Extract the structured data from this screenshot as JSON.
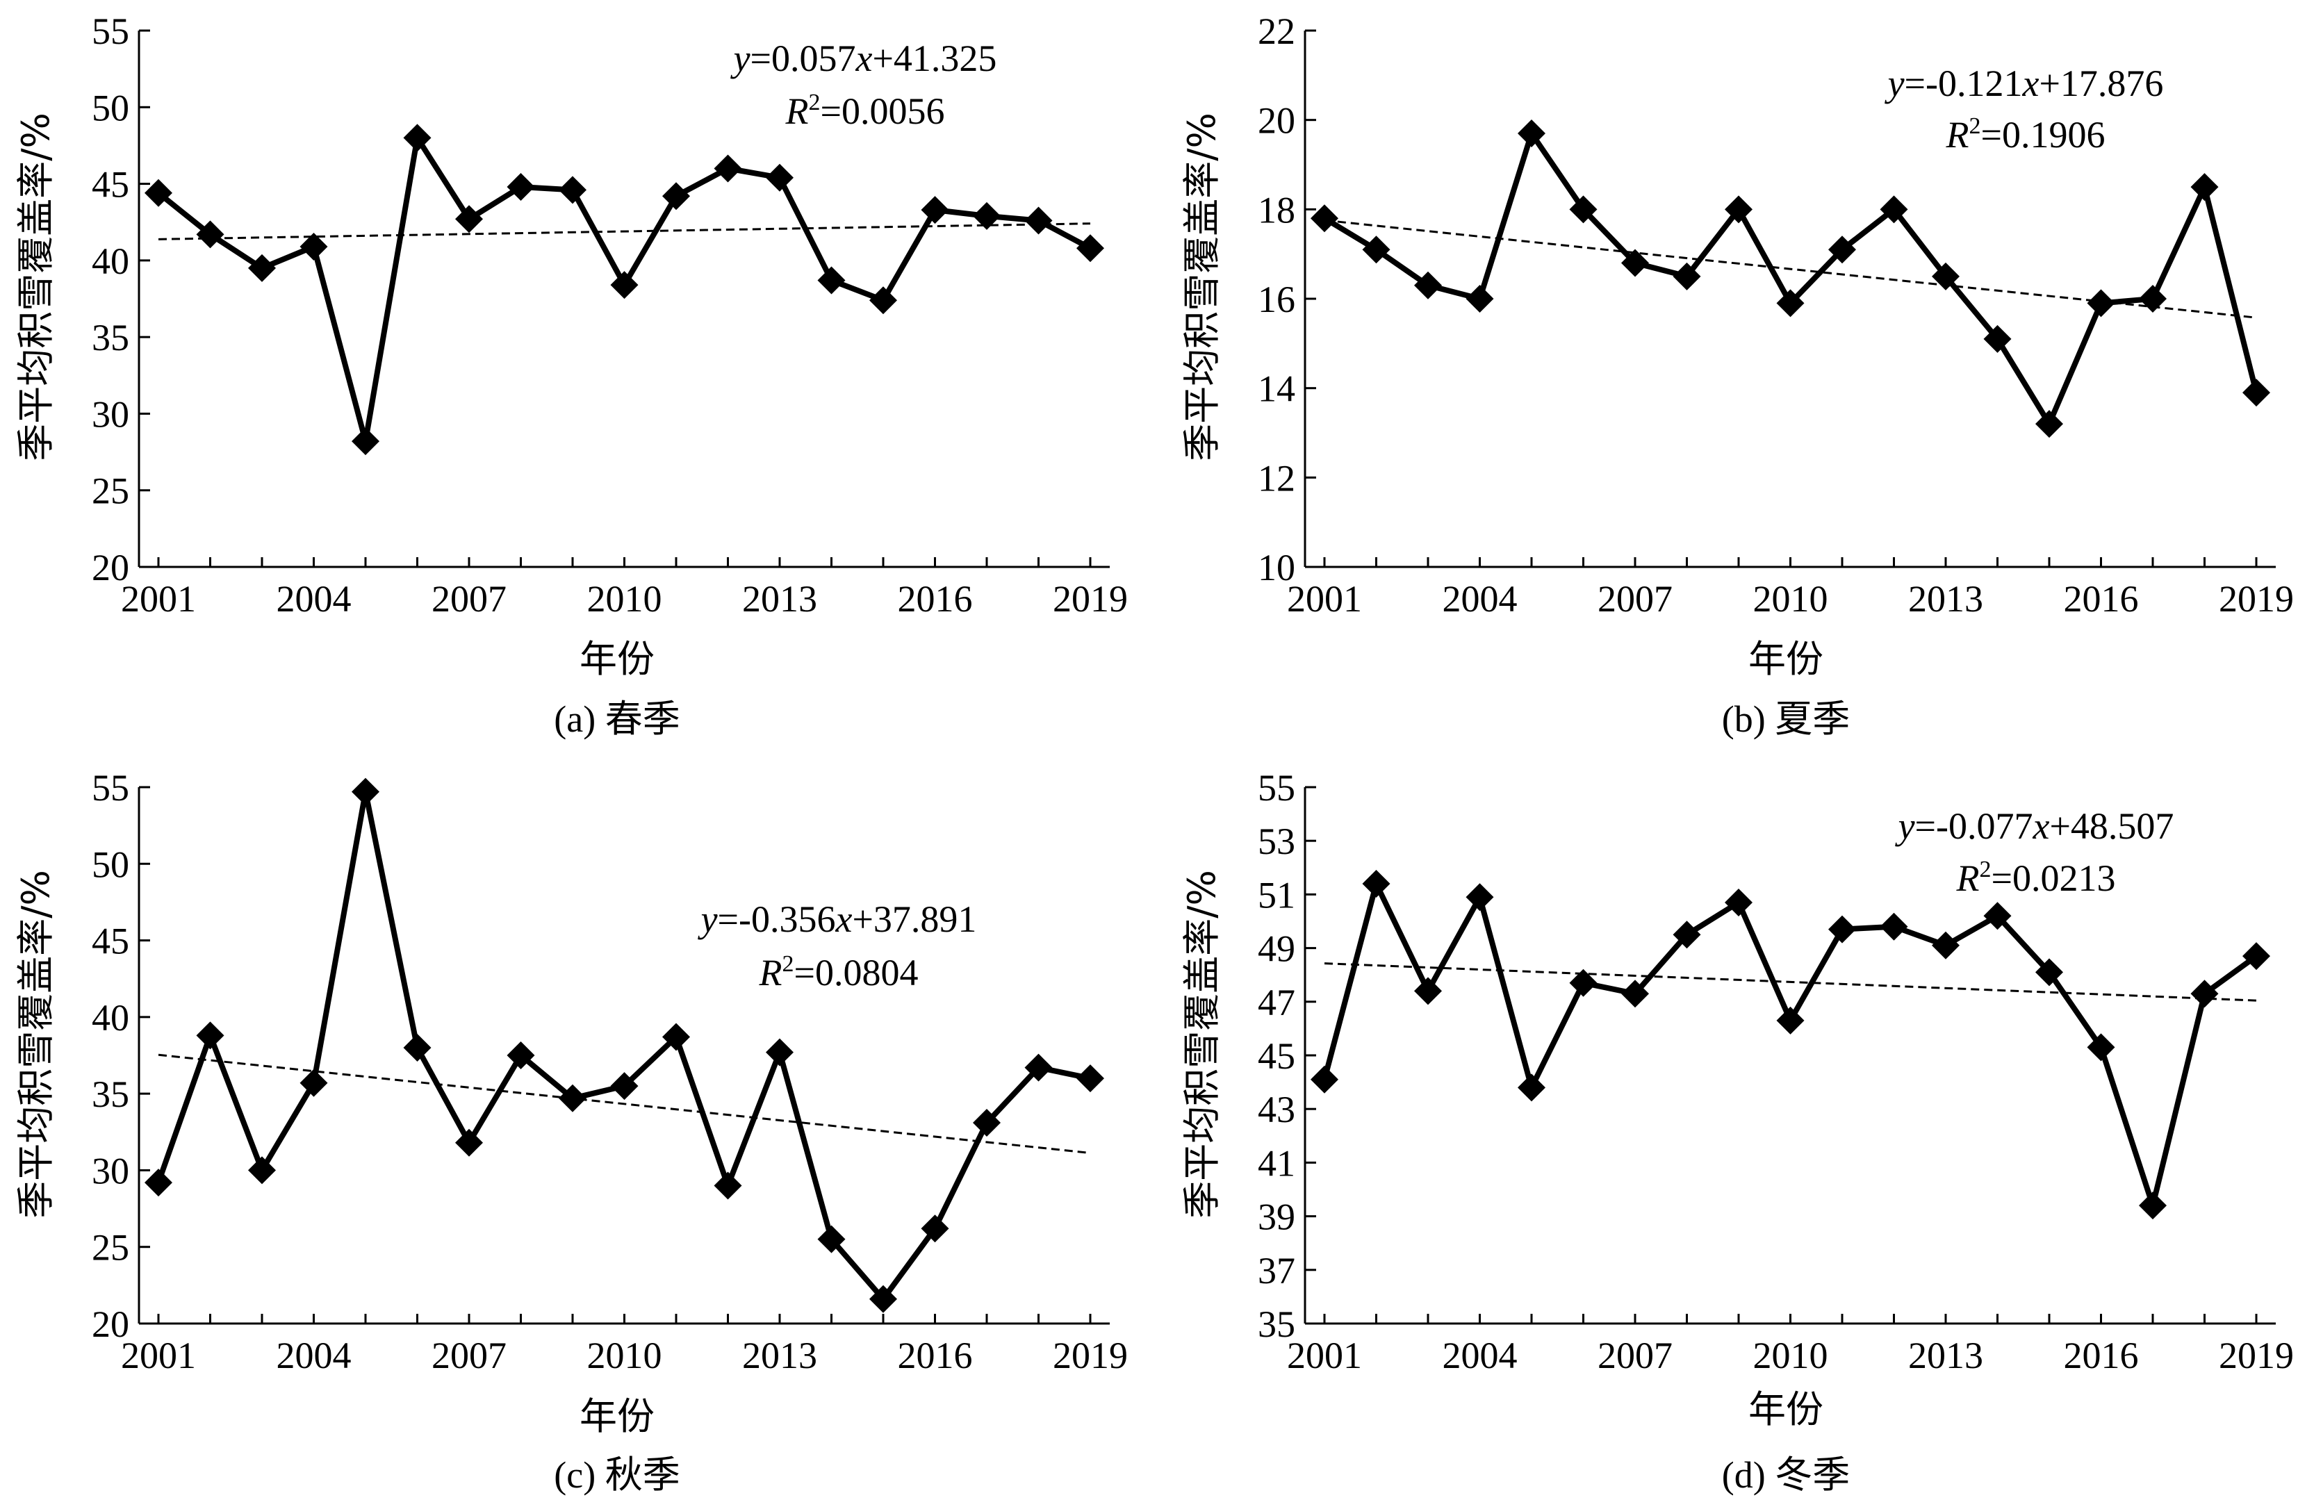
{
  "chart_data": [
    {
      "type": "line",
      "caption": "(a) 春季",
      "xlabel": "年份",
      "ylabel": "季平均积雪覆盖率/%",
      "x": [
        2001,
        2002,
        2003,
        2004,
        2005,
        2006,
        2007,
        2008,
        2009,
        2010,
        2011,
        2012,
        2013,
        2014,
        2015,
        2016,
        2017,
        2018,
        2019
      ],
      "xticks": [
        "2001",
        "2004",
        "2007",
        "2010",
        "2013",
        "2016",
        "2019"
      ],
      "ylim": [
        20,
        55
      ],
      "yticks": [
        "20",
        "25",
        "30",
        "35",
        "40",
        "45",
        "50",
        "55"
      ],
      "series": [
        {
          "values": [
            44.4,
            41.7,
            39.5,
            40.9,
            28.2,
            48.0,
            42.7,
            44.8,
            44.6,
            38.4,
            44.2,
            46.0,
            45.4,
            38.7,
            37.4,
            43.3,
            42.9,
            42.6,
            40.8
          ]
        }
      ],
      "trend": {
        "slope": 0.057,
        "intercept": 41.325
      },
      "equation_prefix": "y",
      "equation_mid": "=0.057",
      "equation_x": "x",
      "equation_suffix": "+41.325",
      "r2_prefix": "R",
      "r2_sup": "2",
      "r2_value": "=0.0056"
    },
    {
      "type": "line",
      "caption": "(b) 夏季",
      "xlabel": "年份",
      "ylabel": "季平均积雪覆盖率/%",
      "x": [
        2001,
        2002,
        2003,
        2004,
        2005,
        2006,
        2007,
        2008,
        2009,
        2010,
        2011,
        2012,
        2013,
        2014,
        2015,
        2016,
        2017,
        2018,
        2019
      ],
      "xticks": [
        "2001",
        "2004",
        "2007",
        "2010",
        "2013",
        "2016",
        "2019"
      ],
      "ylim": [
        10,
        22
      ],
      "yticks": [
        "10",
        "12",
        "14",
        "16",
        "18",
        "20",
        "22"
      ],
      "series": [
        {
          "values": [
            17.8,
            17.1,
            16.3,
            16.0,
            19.7,
            18.0,
            16.8,
            16.5,
            18.0,
            15.9,
            17.1,
            18.0,
            16.5,
            15.1,
            13.2,
            15.9,
            16.0,
            18.5,
            13.9
          ]
        }
      ],
      "trend": {
        "slope": -0.121,
        "intercept": 17.876
      },
      "equation_prefix": "y",
      "equation_mid": "=-0.121",
      "equation_x": "x",
      "equation_suffix": "+17.876",
      "r2_prefix": "R",
      "r2_sup": "2",
      "r2_value": "=0.1906"
    },
    {
      "type": "line",
      "caption": "(c) 秋季",
      "xlabel": "年份",
      "ylabel": "季平均积雪覆盖率/%",
      "x": [
        2001,
        2002,
        2003,
        2004,
        2005,
        2006,
        2007,
        2008,
        2009,
        2010,
        2011,
        2012,
        2013,
        2014,
        2015,
        2016,
        2017,
        2018,
        2019
      ],
      "xticks": [
        "2001",
        "2004",
        "2007",
        "2010",
        "2013",
        "2016",
        "2019"
      ],
      "ylim": [
        20,
        55
      ],
      "yticks": [
        "20",
        "25",
        "30",
        "35",
        "40",
        "45",
        "50",
        "55"
      ],
      "series": [
        {
          "values": [
            29.2,
            38.8,
            30.0,
            35.7,
            54.7,
            38.0,
            31.8,
            37.5,
            34.7,
            35.5,
            38.7,
            29.0,
            37.7,
            25.5,
            21.6,
            26.2,
            33.1,
            36.7,
            36.0
          ]
        }
      ],
      "trend": {
        "slope": -0.356,
        "intercept": 37.891
      },
      "equation_prefix": "y",
      "equation_mid": "=-0.356",
      "equation_x": "x",
      "equation_suffix": "+37.891",
      "r2_prefix": "R",
      "r2_sup": "2",
      "r2_value": "=0.0804"
    },
    {
      "type": "line",
      "caption": "(d) 冬季",
      "xlabel": "年份",
      "ylabel": "季平均积雪覆盖率/%",
      "x": [
        2001,
        2002,
        2003,
        2004,
        2005,
        2006,
        2007,
        2008,
        2009,
        2010,
        2011,
        2012,
        2013,
        2014,
        2015,
        2016,
        2017,
        2018,
        2019
      ],
      "xticks": [
        "2001",
        "2004",
        "2007",
        "2010",
        "2013",
        "2016",
        "2019"
      ],
      "ylim": [
        35,
        55
      ],
      "yticks": [
        "35",
        "37",
        "39",
        "41",
        "43",
        "45",
        "47",
        "49",
        "51",
        "53",
        "55"
      ],
      "series": [
        {
          "values": [
            44.1,
            51.4,
            47.4,
            50.9,
            43.8,
            47.7,
            47.3,
            49.5,
            50.7,
            46.3,
            49.7,
            49.8,
            49.1,
            50.2,
            48.1,
            45.3,
            39.4,
            47.3,
            48.7
          ]
        }
      ],
      "trend": {
        "slope": -0.077,
        "intercept": 48.507
      },
      "equation_prefix": "y",
      "equation_mid": "=-0.077",
      "equation_x": "x",
      "equation_suffix": "+48.507",
      "r2_prefix": "R",
      "r2_sup": "2",
      "r2_value": "=0.0213"
    }
  ]
}
